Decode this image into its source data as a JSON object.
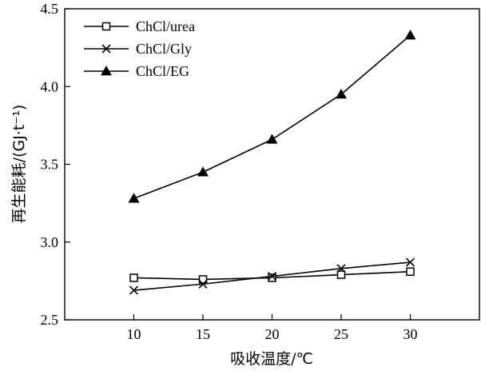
{
  "chart_data": {
    "type": "line",
    "x": [
      10,
      15,
      20,
      25,
      30
    ],
    "xlim": [
      5,
      35
    ],
    "ylim": [
      2.5,
      4.5
    ],
    "xticks": [
      "10",
      "15",
      "20",
      "25",
      "30"
    ],
    "yticks": [
      "2.5",
      "3.0",
      "3.5",
      "4.0",
      "4.5"
    ],
    "xlabel": "吸收温度/℃",
    "ylabel": "再生能耗/(GJ·t⁻¹)",
    "legend_position": "top-left",
    "grid": false,
    "series": [
      {
        "name": "ChCl/urea",
        "marker": "square",
        "values": [
          2.77,
          2.76,
          2.77,
          2.79,
          2.81
        ]
      },
      {
        "name": "ChCl/Gly",
        "marker": "x",
        "values": [
          2.69,
          2.73,
          2.78,
          2.83,
          2.87
        ]
      },
      {
        "name": "ChCl/EG",
        "marker": "triangle",
        "values": [
          3.28,
          3.45,
          3.66,
          3.95,
          4.33
        ]
      }
    ]
  }
}
